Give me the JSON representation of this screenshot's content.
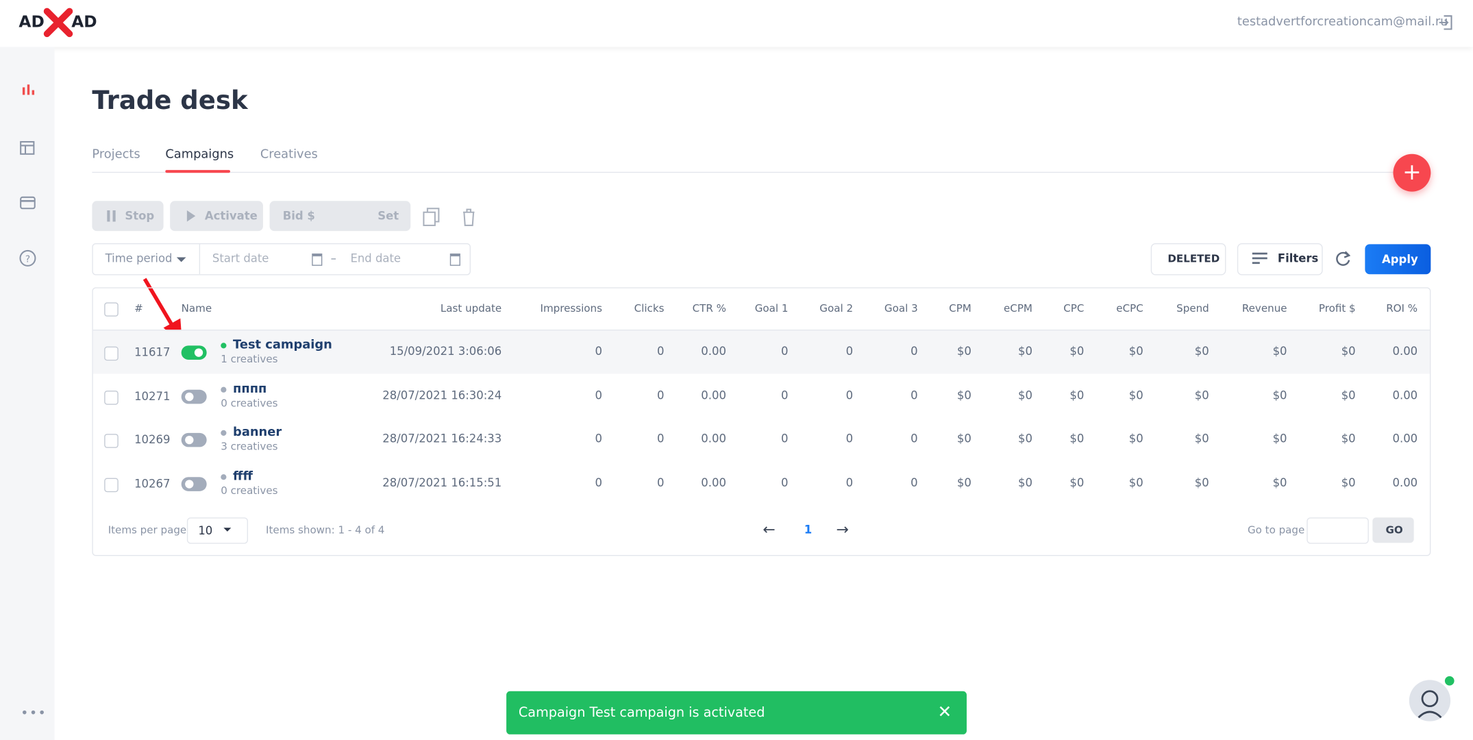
{
  "header": {
    "logo_left": "AD",
    "logo_right": "AD",
    "email": "testadvertforcreationcam@mail.ru"
  },
  "page": {
    "title": "Trade desk"
  },
  "tabs": [
    "Projects",
    "Campaigns",
    "Creatives"
  ],
  "toolbar": {
    "stop": "Stop",
    "activate": "Activate",
    "bid": "Bid $",
    "set": "Set"
  },
  "filters": {
    "time_period": "Time period",
    "start_date": "Start date",
    "dash": "–",
    "end_date": "End date",
    "deleted": "DELETED",
    "filters": "Filters",
    "apply": "Apply"
  },
  "table": {
    "columns": [
      "#",
      "Name",
      "Last update",
      "Impressions",
      "Clicks",
      "CTR %",
      "Goal 1",
      "Goal 2",
      "Goal 3",
      "CPM",
      "eCPM",
      "CPC",
      "eCPC",
      "Spend",
      "Revenue",
      "Profit $",
      "ROI %"
    ],
    "rows": [
      {
        "id": "11617",
        "active": true,
        "name": "Test campaign",
        "creatives": "1 creatives",
        "last_update": "15/09/2021 3:06:06",
        "cells": [
          "0",
          "0",
          "0.00",
          "0",
          "0",
          "0",
          "$0",
          "$0",
          "$0",
          "$0",
          "$0",
          "$0",
          "$0",
          "0.00"
        ]
      },
      {
        "id": "10271",
        "active": false,
        "name": "пппп",
        "creatives": "0 creatives",
        "last_update": "28/07/2021 16:30:24",
        "cells": [
          "0",
          "0",
          "0.00",
          "0",
          "0",
          "0",
          "$0",
          "$0",
          "$0",
          "$0",
          "$0",
          "$0",
          "$0",
          "0.00"
        ]
      },
      {
        "id": "10269",
        "active": false,
        "name": "banner",
        "creatives": "3 creatives",
        "last_update": "28/07/2021 16:24:33",
        "cells": [
          "0",
          "0",
          "0.00",
          "0",
          "0",
          "0",
          "$0",
          "$0",
          "$0",
          "$0",
          "$0",
          "$0",
          "$0",
          "0.00"
        ]
      },
      {
        "id": "10267",
        "active": false,
        "name": "ffff",
        "creatives": "0 creatives",
        "last_update": "28/07/2021 16:15:51",
        "cells": [
          "0",
          "0",
          "0.00",
          "0",
          "0",
          "0",
          "$0",
          "$0",
          "$0",
          "$0",
          "$0",
          "$0",
          "$0",
          "0.00"
        ]
      }
    ]
  },
  "pagination": {
    "items_per_page": "Items per page",
    "per_page": "10",
    "items_shown": "Items shown: 1 - 4 of 4",
    "page": "1",
    "go_to_page": "Go to page",
    "go": "GO"
  },
  "toast": {
    "message": "Campaign Test campaign is activated"
  }
}
